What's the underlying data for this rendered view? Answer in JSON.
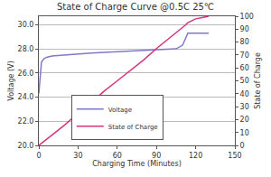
{
  "chart_data": {
    "type": "line",
    "title": "State of Charge Curve @0.5C 25℃",
    "x_label": "Charging Time (Minutes)",
    "y_label": "Voltage (V)",
    "y2_label": "State of Charge",
    "x": [
      0,
      2,
      4,
      6,
      10,
      20,
      30,
      40,
      50,
      60,
      70,
      80,
      90,
      100,
      105,
      110,
      112,
      114,
      120,
      125,
      130
    ],
    "series": [
      {
        "name": "Voltage",
        "color": "#8079c9",
        "line_style": "solid",
        "values": [
          24.3,
          26.9,
          27.2,
          27.3,
          27.4,
          27.5,
          27.6,
          27.65,
          27.7,
          27.75,
          27.8,
          27.85,
          27.9,
          27.95,
          28.0,
          28.3,
          28.8,
          29.3,
          29.3,
          29.3,
          29.3
        ]
      },
      {
        "name": "State of Charge",
        "color": "#d4357d",
        "line_style": "solid",
        "axis": "y2",
        "values": [
          0,
          1.5,
          3,
          5,
          8,
          16,
          25,
          33,
          42,
          50,
          58,
          66,
          75,
          83,
          87,
          91,
          93,
          95,
          98,
          99,
          100
        ]
      }
    ],
    "xlim": [
      0,
      150
    ],
    "xticks": [
      0,
      30,
      60,
      90,
      120,
      150
    ],
    "ylim": [
      20,
      30.7
    ],
    "yticks": [
      {
        "value": 20,
        "label": "20.0"
      },
      {
        "value": 22,
        "label": "22.0"
      },
      {
        "value": 24,
        "label": "24.0"
      },
      {
        "value": 26,
        "label": "26.0"
      },
      {
        "value": 28,
        "label": "28.0"
      },
      {
        "value": 30,
        "label": "30.0"
      }
    ],
    "y2lim": [
      0,
      100
    ],
    "y2ticks": [
      0,
      10,
      20,
      30,
      40,
      50,
      60,
      70,
      80,
      90,
      100
    ],
    "grid": true,
    "legend": "lower center"
  }
}
